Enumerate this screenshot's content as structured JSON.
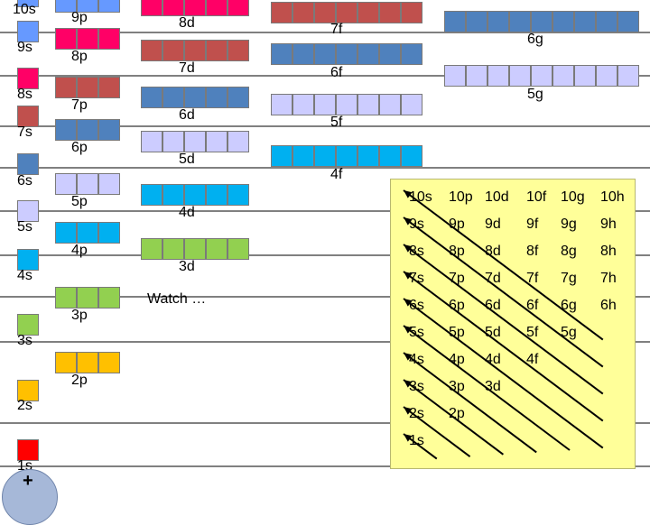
{
  "levels": [
    {
      "label": "1s",
      "color": "#ff0000",
      "line_y": 517
    },
    {
      "label": "2s",
      "color": "#ffc000",
      "line_y": 469
    },
    {
      "label": "3s",
      "color": "#92d050",
      "line_y": 379
    },
    {
      "label": "4s",
      "color": "#00b0f0",
      "line_y": 329
    },
    {
      "label": "5s",
      "color": "#ccccff",
      "line_y": 283
    },
    {
      "label": "6s",
      "color": "#4f81bd",
      "line_y": 234
    },
    {
      "label": "7s",
      "color": "#c0504d",
      "line_y": 186
    },
    {
      "label": "8s",
      "color": "#ff0066",
      "line_y": 140
    },
    {
      "label": "9s",
      "color": "#6699ff",
      "line_y": 84
    },
    {
      "label": "10s",
      "color": "#6699ff",
      "line_y": 36
    }
  ],
  "p_orbitals": [
    {
      "label": "2p",
      "color": "#ffc000"
    },
    {
      "label": "3p",
      "color": "#92d050"
    },
    {
      "label": "4p",
      "color": "#00b0f0"
    },
    {
      "label": "5p",
      "color": "#ccccff"
    },
    {
      "label": "6p",
      "color": "#4f81bd"
    },
    {
      "label": "7p",
      "color": "#c0504d"
    },
    {
      "label": "8p",
      "color": "#ff0066"
    },
    {
      "label": "9p",
      "color": "#6699ff"
    }
  ],
  "d_orbitals": [
    {
      "label": "3d",
      "color": "#92d050"
    },
    {
      "label": "4d",
      "color": "#00b0f0"
    },
    {
      "label": "5d",
      "color": "#ccccff"
    },
    {
      "label": "6d",
      "color": "#4f81bd"
    },
    {
      "label": "7d",
      "color": "#c0504d"
    },
    {
      "label": "8d",
      "color": "#ff0066"
    }
  ],
  "f_orbitals": [
    {
      "label": "4f",
      "color": "#00b0f0"
    },
    {
      "label": "5f",
      "color": "#ccccff"
    },
    {
      "label": "6f",
      "color": "#4f81bd"
    },
    {
      "label": "7f",
      "color": "#c0504d"
    }
  ],
  "g_orbitals": [
    {
      "label": "5g",
      "color": "#ccccff"
    },
    {
      "label": "6g",
      "color": "#4f81bd"
    }
  ],
  "watch_text": "Watch …",
  "nucleus_symbol": "+",
  "aufbau_grid": [
    [
      "10s",
      "10p",
      "10d",
      "10f",
      "10g",
      "10h"
    ],
    [
      "9s",
      "9p",
      "9d",
      "9f",
      "9g",
      "9h"
    ],
    [
      "8s",
      "8p",
      "8d",
      "8f",
      "8g",
      "8h"
    ],
    [
      "7s",
      "7p",
      "7d",
      "7f",
      "7g",
      "7h"
    ],
    [
      "6s",
      "6p",
      "6d",
      "6f",
      "6g",
      "6h"
    ],
    [
      "5s",
      "5p",
      "5d",
      "5f",
      "5g"
    ],
    [
      "4s",
      "4p",
      "4d",
      "4f"
    ],
    [
      "3s",
      "3p",
      "3d"
    ],
    [
      "2s",
      "2p"
    ],
    [
      "1s"
    ]
  ]
}
